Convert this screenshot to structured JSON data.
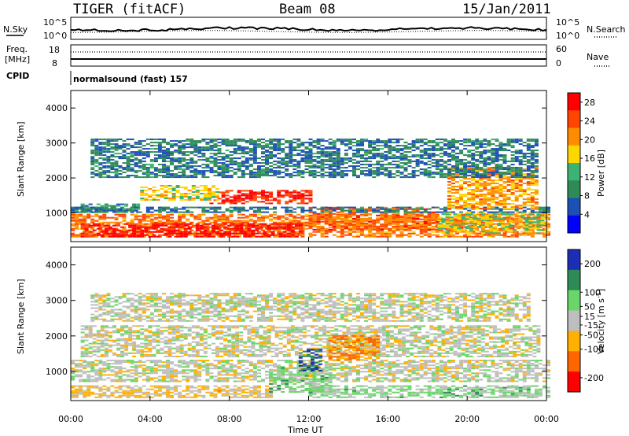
{
  "header": {
    "station": "TIGER (fitACF)",
    "beam": "Beam 08",
    "date": "15/Jan/2011"
  },
  "noise_panel": {
    "left_label": "N.Sky",
    "left_ticks": [
      "10^5",
      "10^0"
    ],
    "right_ticks": [
      "10^5",
      "10^0"
    ],
    "right_label": "N.Search"
  },
  "freq_panel": {
    "label_line1": "Freq.",
    "label_line2": "[MHz]",
    "left_ticks": [
      "18",
      "8"
    ],
    "right_ticks": [
      "60",
      "0"
    ],
    "right_label": "Nave"
  },
  "cpid_panel": {
    "label": "CPID",
    "program": "normalsound (fast) 157"
  },
  "colors": {
    "power_scale": [
      "#0000ff",
      "#1c50b4",
      "#2e8b57",
      "#3cb371",
      "#ffd700",
      "#ff8c00",
      "#ff4500",
      "#ff0000"
    ],
    "velocity_scale": [
      "#1c2fb4",
      "#2e8b57",
      "#6ad66a",
      "#bebebe",
      "#ffb000",
      "#ff6600",
      "#ff0000"
    ]
  },
  "time_axis": {
    "ticks": [
      "00:00",
      "04:00",
      "08:00",
      "12:00",
      "16:00",
      "20:00",
      "00:00"
    ],
    "label": "Time UT"
  },
  "chart_data": [
    {
      "type": "heatmap",
      "title": "",
      "xlabel": "",
      "ylabel": "Slant Range [km]",
      "xlim_hours": [
        0,
        24
      ],
      "ylim": [
        180,
        4500
      ],
      "yticks": [
        1000,
        2000,
        3000,
        4000
      ],
      "colorbar": {
        "label": "Power [dB]",
        "ticks": [
          4,
          8,
          12,
          16,
          20,
          24,
          28
        ],
        "range": [
          0,
          30
        ]
      },
      "regions": [
        {
          "t0": 0.0,
          "t1": 24.0,
          "r0": 300,
          "r1": 950,
          "value": 22
        },
        {
          "t0": 0.5,
          "t1": 11.5,
          "r0": 300,
          "r1": 700,
          "value": 29
        },
        {
          "t0": 7.0,
          "t1": 12.0,
          "r0": 1250,
          "r1": 1650,
          "value": 27
        },
        {
          "t0": 3.5,
          "t1": 7.5,
          "r0": 1350,
          "r1": 1800,
          "value": 17
        },
        {
          "t0": 0.5,
          "t1": 3.5,
          "r0": 1000,
          "r1": 1250,
          "value": 10
        },
        {
          "t0": 12.0,
          "t1": 18.5,
          "r0": 500,
          "r1": 1150,
          "value": 23
        },
        {
          "t0": 18.5,
          "t1": 24.0,
          "r0": 400,
          "r1": 1000,
          "value": 16
        },
        {
          "t0": 0.0,
          "t1": 24.0,
          "r0": 1000,
          "r1": 1150,
          "value": 8
        },
        {
          "t0": 19.0,
          "t1": 23.5,
          "r0": 1100,
          "r1": 2300,
          "value": 20
        },
        {
          "t0": 1.0,
          "t1": 23.5,
          "r0": 2000,
          "r1": 3100,
          "value": 8
        }
      ]
    },
    {
      "type": "heatmap",
      "title": "",
      "xlabel": "Time UT",
      "ylabel": "Slant Range [km]",
      "xlim_hours": [
        0,
        24
      ],
      "ylim": [
        180,
        4500
      ],
      "yticks": [
        1000,
        2000,
        3000,
        4000
      ],
      "colorbar": {
        "label": "Velocity [m s^-1]",
        "ticks": [
          200,
          100,
          50,
          15,
          -15,
          -50,
          -100,
          -200
        ],
        "range": [
          -250,
          250
        ]
      },
      "regions": [
        {
          "t0": 0.0,
          "t1": 24.0,
          "r0": 700,
          "r1": 1300,
          "value": 0
        },
        {
          "t0": 0.5,
          "t1": 23.5,
          "r0": 1400,
          "r1": 2300,
          "value": 0
        },
        {
          "t0": 0.0,
          "t1": 10.0,
          "r0": 250,
          "r1": 600,
          "value": -45
        },
        {
          "t0": 10.0,
          "t1": 13.0,
          "r0": 400,
          "r1": 1100,
          "value": 60
        },
        {
          "t0": 12.0,
          "t1": 24.0,
          "r0": 250,
          "r1": 600,
          "value": 55
        },
        {
          "t0": 11.5,
          "t1": 12.5,
          "r0": 1000,
          "r1": 1600,
          "value": 180
        },
        {
          "t0": 13.0,
          "t1": 15.5,
          "r0": 1300,
          "r1": 2000,
          "value": -110
        },
        {
          "t0": 1.0,
          "t1": 23.0,
          "r0": 2400,
          "r1": 3200,
          "value": 0
        }
      ]
    }
  ]
}
